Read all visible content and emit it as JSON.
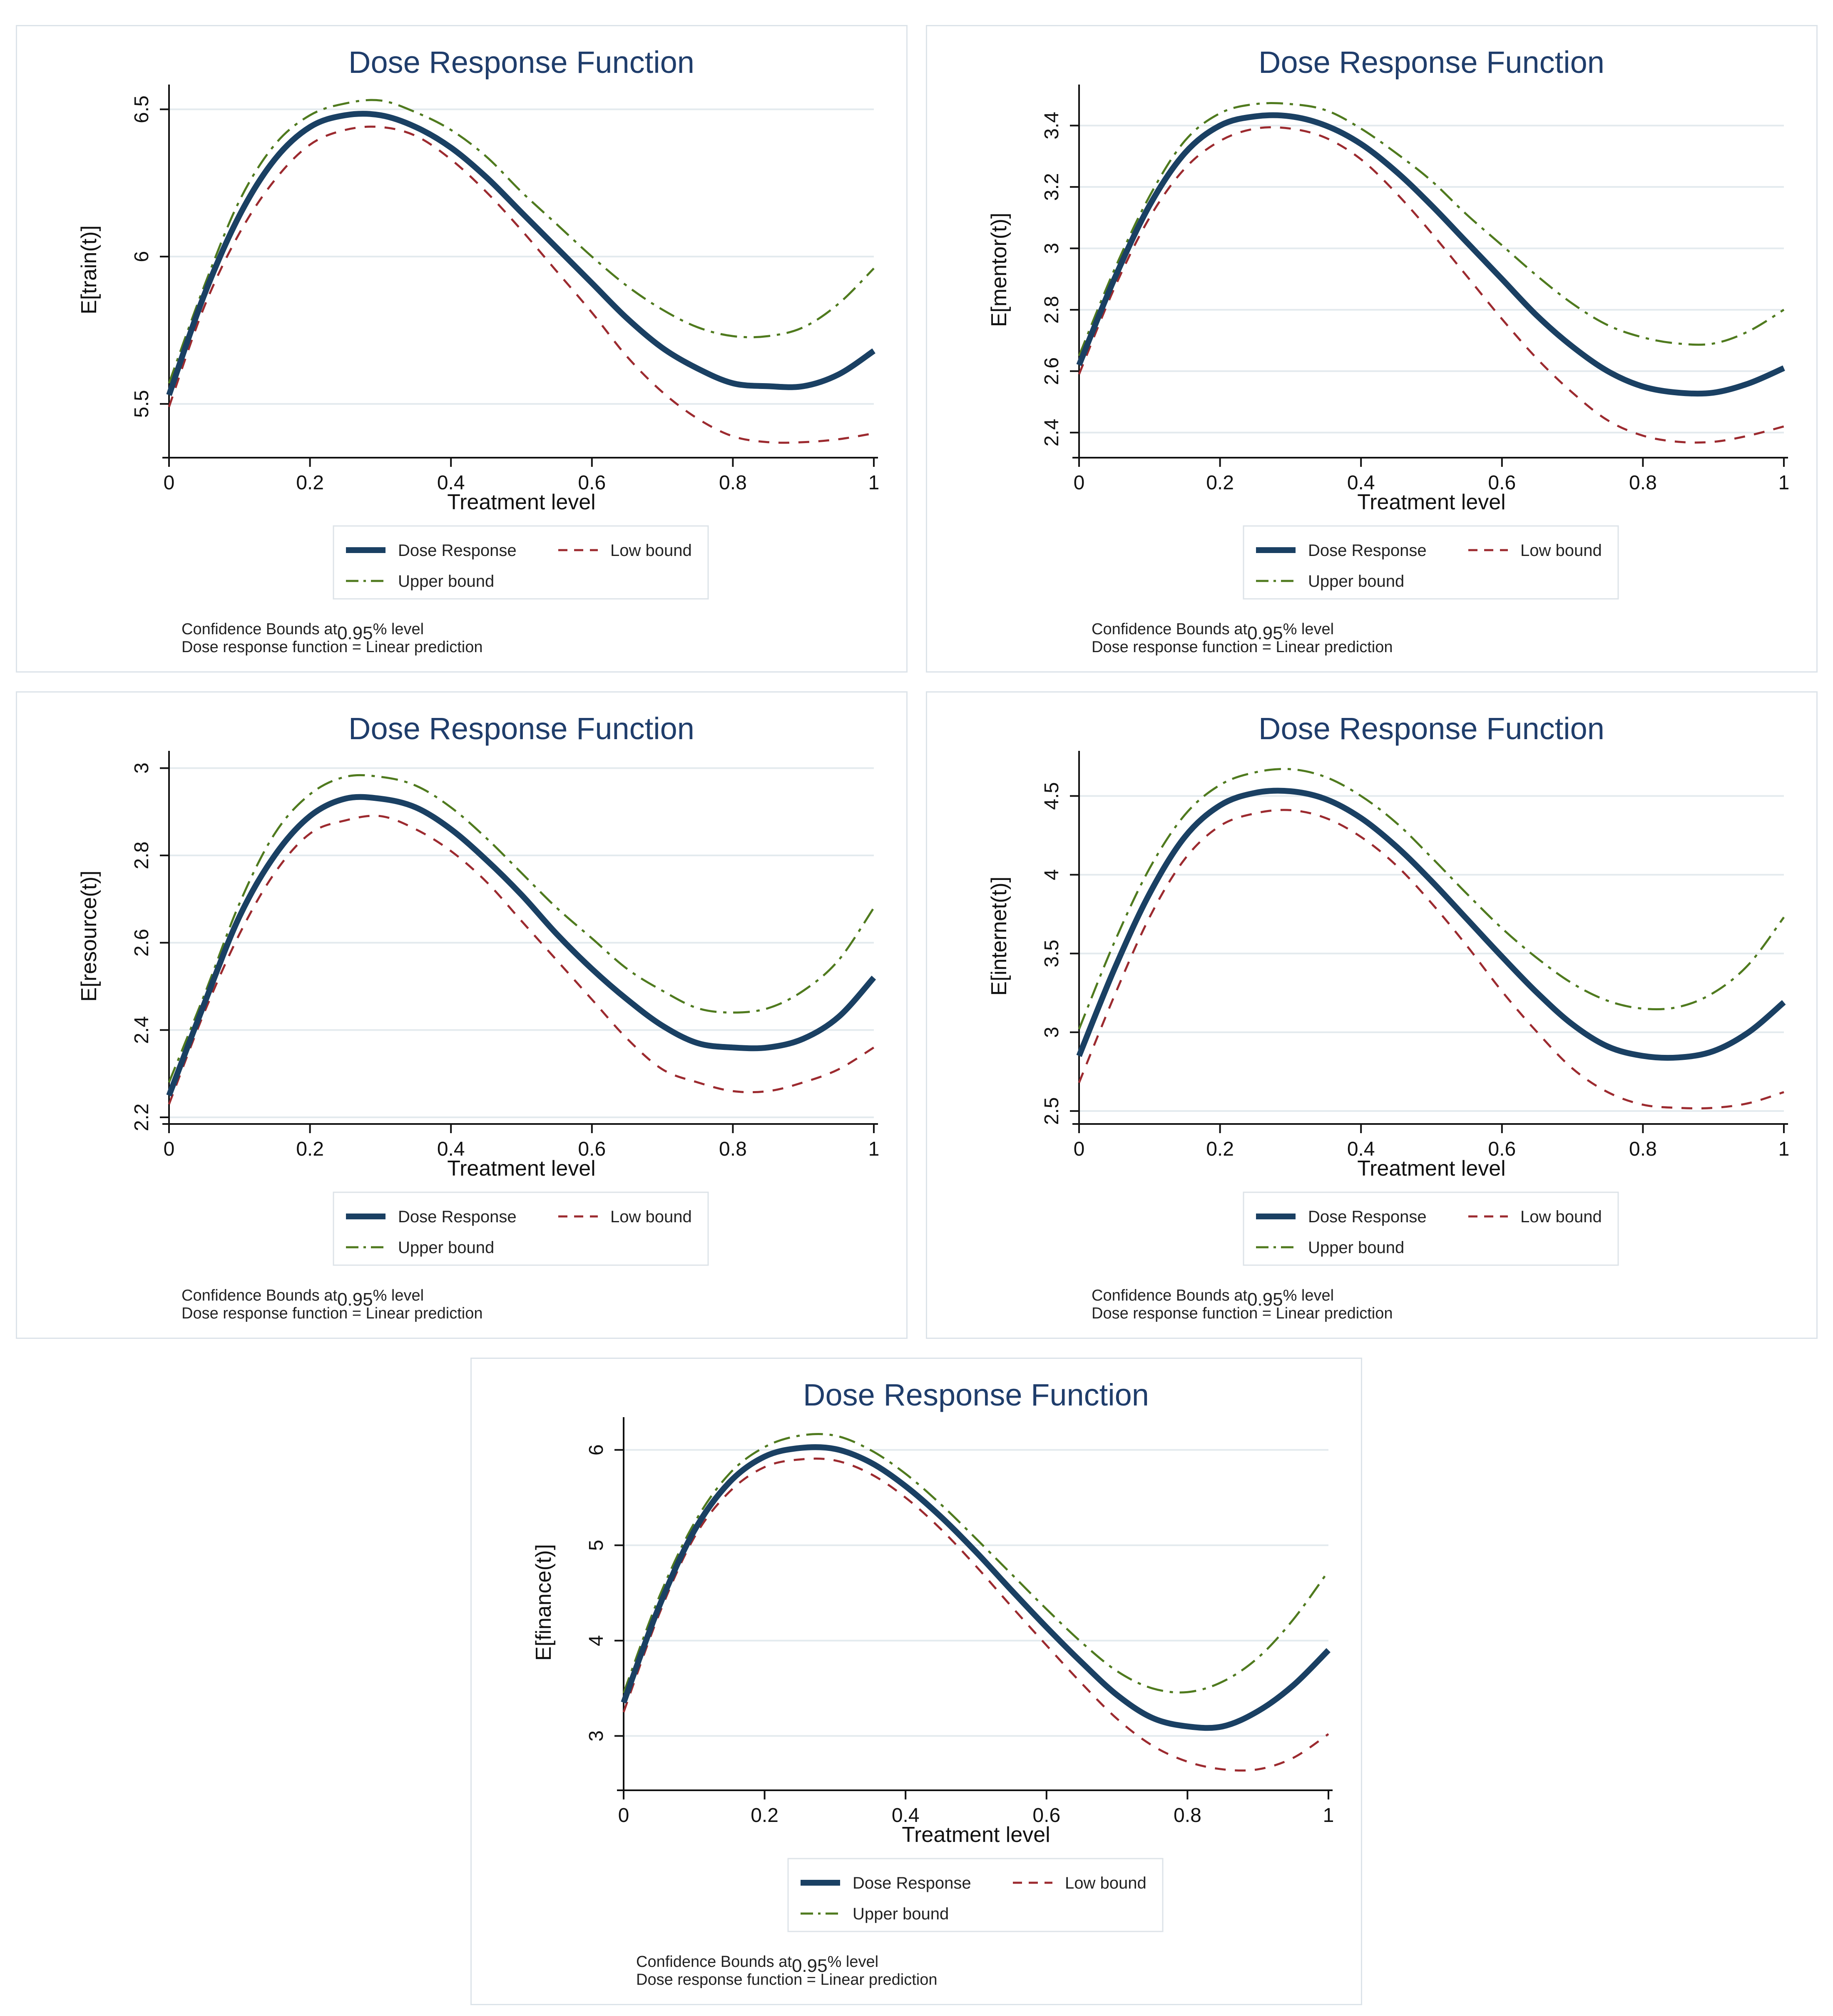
{
  "colors": {
    "dose": "#1a4063",
    "low": "#9c2a2f",
    "upper": "#4f7a1e",
    "grid": "#e3eaee",
    "axis": "#111111",
    "title": "#1f3d6b",
    "panel_border": "#dce3e9"
  },
  "chart_data": [
    {
      "type": "line",
      "title": "Dose Response Function",
      "xlabel": "Treatment level",
      "ylabel": "E[train(t)]",
      "xlim": [
        0,
        1
      ],
      "ylim": [
        5.34,
        6.57
      ],
      "xticks": [
        0,
        0.2,
        0.4,
        0.6,
        0.8,
        1
      ],
      "xtick_labels": [
        "0",
        "0.2",
        "0.4",
        "0.6",
        "0.8",
        "1"
      ],
      "yticks": [
        5.5,
        6,
        6.5
      ],
      "ytick_labels": [
        "5.5",
        "6",
        "6.5"
      ],
      "grid": true,
      "x": [
        0,
        0.05,
        0.1,
        0.15,
        0.2,
        0.25,
        0.3,
        0.35,
        0.4,
        0.45,
        0.5,
        0.55,
        0.6,
        0.65,
        0.7,
        0.75,
        0.8,
        0.85,
        0.9,
        0.95,
        1
      ],
      "series": [
        {
          "name": "Dose Response",
          "role": "dose",
          "values": [
            5.53,
            5.87,
            6.14,
            6.33,
            6.44,
            6.48,
            6.48,
            6.44,
            6.37,
            6.27,
            6.15,
            6.03,
            5.91,
            5.79,
            5.69,
            5.62,
            5.57,
            5.56,
            5.56,
            5.6,
            5.68
          ]
        },
        {
          "name": "Low bound",
          "role": "low",
          "values": [
            5.49,
            5.83,
            6.08,
            6.26,
            6.38,
            6.43,
            6.44,
            6.41,
            6.33,
            6.22,
            6.09,
            5.95,
            5.81,
            5.66,
            5.54,
            5.45,
            5.39,
            5.37,
            5.37,
            5.38,
            5.4
          ]
        },
        {
          "name": "Upper bound",
          "role": "upper",
          "values": [
            5.57,
            5.9,
            6.19,
            6.38,
            6.48,
            6.52,
            6.53,
            6.49,
            6.43,
            6.34,
            6.22,
            6.11,
            6.0,
            5.9,
            5.82,
            5.76,
            5.73,
            5.73,
            5.76,
            5.84,
            5.96
          ]
        }
      ],
      "legend": {
        "position": "bottom",
        "items": [
          {
            "label": "Dose Response",
            "role": "dose"
          },
          {
            "label": "Low bound",
            "role": "low"
          },
          {
            "label": "Upper bound",
            "role": "upper"
          }
        ]
      },
      "note_prefix": "Confidence Bounds at",
      "note_level": "0.95",
      "note_suffix": "% level",
      "note_line2": "Dose response function = Linear prediction"
    },
    {
      "type": "line",
      "title": "Dose Response Function",
      "xlabel": "Treatment level",
      "ylabel": "E[mentor(t)]",
      "xlim": [
        0,
        1
      ],
      "ylim": [
        2.34,
        3.52
      ],
      "xticks": [
        0,
        0.2,
        0.4,
        0.6,
        0.8,
        1
      ],
      "xtick_labels": [
        "0",
        "0.2",
        "0.4",
        "0.6",
        "0.8",
        "1"
      ],
      "yticks": [
        2.4,
        2.6,
        2.8,
        3,
        3.2,
        3.4
      ],
      "ytick_labels": [
        "2.4",
        "2.6",
        "2.8",
        "3",
        "3.2",
        "3.4"
      ],
      "grid": true,
      "x": [
        0,
        0.05,
        0.1,
        0.15,
        0.2,
        0.25,
        0.3,
        0.35,
        0.4,
        0.45,
        0.5,
        0.55,
        0.6,
        0.65,
        0.7,
        0.75,
        0.8,
        0.85,
        0.9,
        0.95,
        1
      ],
      "series": [
        {
          "name": "Dose Response",
          "role": "dose",
          "values": [
            2.62,
            2.9,
            3.14,
            3.31,
            3.4,
            3.43,
            3.43,
            3.4,
            3.34,
            3.25,
            3.14,
            3.02,
            2.9,
            2.78,
            2.68,
            2.6,
            2.55,
            2.53,
            2.53,
            2.56,
            2.61
          ]
        },
        {
          "name": "Low bound",
          "role": "low",
          "values": [
            2.59,
            2.87,
            3.1,
            3.26,
            3.35,
            3.39,
            3.39,
            3.36,
            3.29,
            3.18,
            3.05,
            2.91,
            2.77,
            2.64,
            2.53,
            2.44,
            2.39,
            2.37,
            2.37,
            2.39,
            2.42
          ]
        },
        {
          "name": "Upper bound",
          "role": "upper",
          "values": [
            2.65,
            2.93,
            3.17,
            3.35,
            3.44,
            3.47,
            3.47,
            3.45,
            3.39,
            3.31,
            3.22,
            3.11,
            3.01,
            2.91,
            2.82,
            2.75,
            2.71,
            2.69,
            2.69,
            2.73,
            2.8
          ]
        }
      ],
      "legend": {
        "position": "bottom",
        "items": [
          {
            "label": "Dose Response",
            "role": "dose"
          },
          {
            "label": "Low bound",
            "role": "low"
          },
          {
            "label": "Upper bound",
            "role": "upper"
          }
        ]
      },
      "note_prefix": "Confidence Bounds at",
      "note_level": "0.95",
      "note_suffix": "% level",
      "note_line2": "Dose response function = Linear prediction"
    },
    {
      "type": "line",
      "title": "Dose Response Function",
      "xlabel": "Treatment level",
      "ylabel": "E[resource(t)]",
      "xlim": [
        0,
        1
      ],
      "ylim": [
        2.2,
        3.03
      ],
      "xticks": [
        0,
        0.2,
        0.4,
        0.6,
        0.8,
        1
      ],
      "xtick_labels": [
        "0",
        "0.2",
        "0.4",
        "0.6",
        "0.8",
        "1"
      ],
      "yticks": [
        2.2,
        2.4,
        2.6,
        2.8,
        3
      ],
      "ytick_labels": [
        "2.2",
        "2.4",
        "2.6",
        "2.8",
        "3"
      ],
      "grid": true,
      "x": [
        0,
        0.05,
        0.1,
        0.15,
        0.2,
        0.25,
        0.3,
        0.35,
        0.4,
        0.45,
        0.5,
        0.55,
        0.6,
        0.65,
        0.7,
        0.75,
        0.8,
        0.85,
        0.9,
        0.95,
        1
      ],
      "series": [
        {
          "name": "Dose Response",
          "role": "dose",
          "values": [
            2.25,
            2.46,
            2.66,
            2.8,
            2.89,
            2.93,
            2.93,
            2.91,
            2.86,
            2.79,
            2.71,
            2.62,
            2.54,
            2.47,
            2.41,
            2.37,
            2.36,
            2.36,
            2.38,
            2.43,
            2.52
          ]
        },
        {
          "name": "Low bound",
          "role": "low",
          "values": [
            2.23,
            2.44,
            2.62,
            2.76,
            2.85,
            2.88,
            2.89,
            2.86,
            2.81,
            2.74,
            2.65,
            2.56,
            2.47,
            2.38,
            2.31,
            2.28,
            2.26,
            2.26,
            2.28,
            2.31,
            2.36
          ]
        },
        {
          "name": "Upper bound",
          "role": "upper",
          "values": [
            2.28,
            2.48,
            2.69,
            2.85,
            2.94,
            2.98,
            2.98,
            2.96,
            2.91,
            2.84,
            2.76,
            2.68,
            2.61,
            2.54,
            2.49,
            2.45,
            2.44,
            2.45,
            2.49,
            2.56,
            2.68
          ]
        }
      ],
      "legend": {
        "position": "bottom",
        "items": [
          {
            "label": "Dose Response",
            "role": "dose"
          },
          {
            "label": "Low bound",
            "role": "low"
          },
          {
            "label": "Upper bound",
            "role": "upper"
          }
        ]
      },
      "note_prefix": "Confidence Bounds at",
      "note_level": "0.95",
      "note_suffix": "% level",
      "note_line2": "Dose response function = Linear prediction"
    },
    {
      "type": "line",
      "title": "Dose Response Function",
      "xlabel": "Treatment level",
      "ylabel": "E[internet(t)]",
      "xlim": [
        0,
        1
      ],
      "ylim": [
        2.46,
        4.76
      ],
      "xticks": [
        0,
        0.2,
        0.4,
        0.6,
        0.8,
        1
      ],
      "xtick_labels": [
        "0",
        "0.2",
        "0.4",
        "0.6",
        "0.8",
        "1"
      ],
      "yticks": [
        2.5,
        3,
        3.5,
        4,
        4.5
      ],
      "ytick_labels": [
        "2.5",
        "3",
        "3.5",
        "4",
        "4.5"
      ],
      "grid": true,
      "x": [
        0,
        0.05,
        0.1,
        0.15,
        0.2,
        0.25,
        0.3,
        0.35,
        0.4,
        0.45,
        0.5,
        0.55,
        0.6,
        0.65,
        0.7,
        0.75,
        0.8,
        0.85,
        0.9,
        0.95,
        1
      ],
      "series": [
        {
          "name": "Dose Response",
          "role": "dose",
          "values": [
            2.85,
            3.4,
            3.88,
            4.24,
            4.44,
            4.52,
            4.53,
            4.48,
            4.36,
            4.18,
            3.96,
            3.72,
            3.48,
            3.25,
            3.05,
            2.91,
            2.85,
            2.84,
            2.88,
            3.0,
            3.19
          ]
        },
        {
          "name": "Low bound",
          "role": "low",
          "values": [
            2.68,
            3.23,
            3.73,
            4.1,
            4.31,
            4.39,
            4.41,
            4.36,
            4.24,
            4.06,
            3.82,
            3.55,
            3.26,
            3.0,
            2.77,
            2.62,
            2.54,
            2.52,
            2.52,
            2.55,
            2.62
          ]
        },
        {
          "name": "Upper bound",
          "role": "upper",
          "values": [
            3.02,
            3.57,
            4.04,
            4.38,
            4.57,
            4.65,
            4.67,
            4.62,
            4.5,
            4.33,
            4.11,
            3.88,
            3.66,
            3.47,
            3.31,
            3.2,
            3.15,
            3.16,
            3.25,
            3.43,
            3.73
          ]
        }
      ],
      "legend": {
        "position": "bottom",
        "items": [
          {
            "label": "Dose Response",
            "role": "dose"
          },
          {
            "label": "Low bound",
            "role": "low"
          },
          {
            "label": "Upper bound",
            "role": "upper"
          }
        ]
      },
      "note_prefix": "Confidence Bounds at",
      "note_level": "0.95",
      "note_suffix": "% level",
      "note_line2": "Dose response function = Linear prediction"
    },
    {
      "type": "line",
      "title": "Dose Response Function",
      "xlabel": "Treatment level",
      "ylabel": "E[finance(t)]",
      "xlim": [
        0,
        1
      ],
      "ylim": [
        2.5,
        6.3
      ],
      "xticks": [
        0,
        0.2,
        0.4,
        0.6,
        0.8,
        1
      ],
      "xtick_labels": [
        "0",
        "0.2",
        "0.4",
        "0.6",
        "0.8",
        "1"
      ],
      "yticks": [
        3,
        4,
        5,
        6
      ],
      "ytick_labels": [
        "3",
        "4",
        "5",
        "6"
      ],
      "grid": true,
      "x": [
        0,
        0.05,
        0.1,
        0.15,
        0.2,
        0.25,
        0.3,
        0.35,
        0.4,
        0.45,
        0.5,
        0.55,
        0.6,
        0.65,
        0.7,
        0.75,
        0.8,
        0.85,
        0.9,
        0.95,
        1
      ],
      "series": [
        {
          "name": "Dose Response",
          "role": "dose",
          "values": [
            3.35,
            4.35,
            5.15,
            5.66,
            5.93,
            6.02,
            6.01,
            5.87,
            5.62,
            5.3,
            4.93,
            4.53,
            4.14,
            3.77,
            3.43,
            3.19,
            3.1,
            3.1,
            3.26,
            3.53,
            3.9
          ]
        },
        {
          "name": "Low bound",
          "role": "low",
          "values": [
            3.25,
            4.27,
            5.08,
            5.56,
            5.82,
            5.9,
            5.89,
            5.75,
            5.5,
            5.17,
            4.78,
            4.36,
            3.95,
            3.55,
            3.18,
            2.9,
            2.73,
            2.65,
            2.65,
            2.77,
            3.02
          ]
        },
        {
          "name": "Upper bound",
          "role": "upper",
          "values": [
            3.45,
            4.45,
            5.23,
            5.75,
            6.03,
            6.15,
            6.15,
            6.0,
            5.75,
            5.43,
            5.07,
            4.7,
            4.33,
            3.98,
            3.68,
            3.5,
            3.46,
            3.57,
            3.82,
            4.22,
            4.73
          ]
        }
      ],
      "legend": {
        "position": "bottom",
        "items": [
          {
            "label": "Dose Response",
            "role": "dose"
          },
          {
            "label": "Low bound",
            "role": "low"
          },
          {
            "label": "Upper bound",
            "role": "upper"
          }
        ]
      },
      "note_prefix": "Confidence Bounds at",
      "note_level": "0.95",
      "note_suffix": "% level",
      "note_line2": "Dose response function = Linear prediction"
    }
  ]
}
